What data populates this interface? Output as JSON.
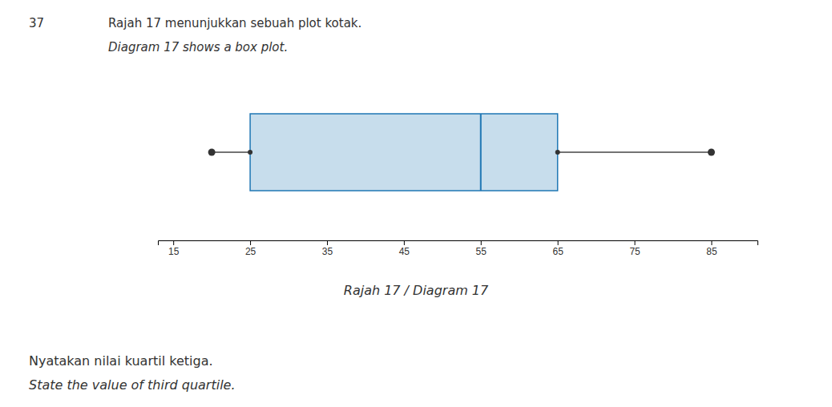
{
  "chart_data": {
    "type": "box",
    "title": "Rajah 17 menunjukkan sebuah plot kotak.",
    "subtitle": "Diagram 17 shows a box plot.",
    "annotations": [
      "37",
      "Rajah 17 / Diagram 17",
      "Nyatakan nilai kuartil ketiga.",
      "State the value of third quartile."
    ],
    "min": 20,
    "q1": 25,
    "median": 55,
    "q3": 65,
    "max": 85,
    "xlim": [
      13,
      91
    ],
    "xticks": [
      15,
      25,
      35,
      45,
      55,
      65,
      75,
      85
    ],
    "grid": false
  }
}
